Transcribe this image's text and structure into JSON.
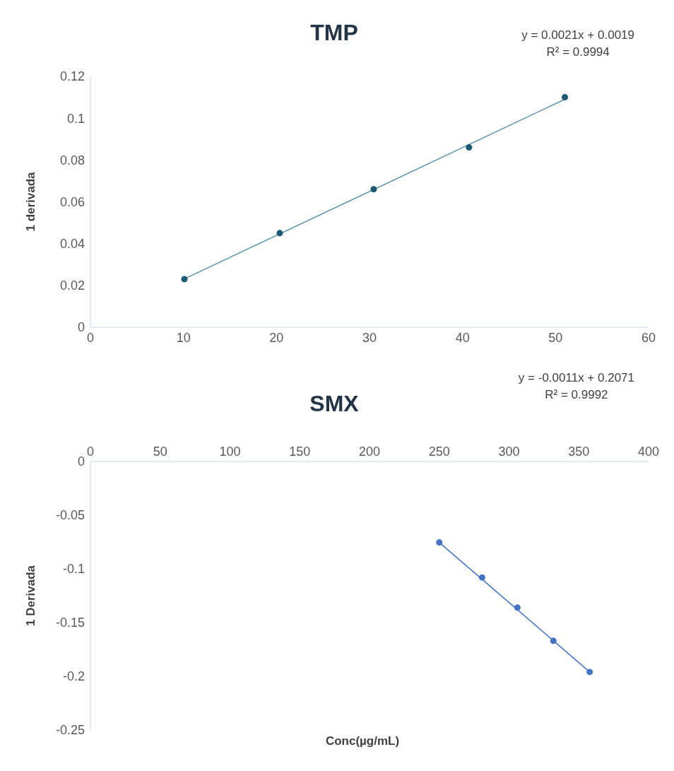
{
  "chart_data": [
    {
      "type": "scatter",
      "title": "TMP",
      "ylabel": "1 derivada",
      "annotations": [
        "y = 0.0021x + 0.0019",
        "R² = 0.9994"
      ],
      "xlim": [
        0,
        60
      ],
      "xticks": [
        0,
        10,
        20,
        30,
        40,
        50,
        60
      ],
      "ylim": [
        0,
        0.12
      ],
      "yticks": [
        0,
        0.02,
        0.04,
        0.06,
        0.08,
        0.1,
        0.12
      ],
      "marker": "circle",
      "series": [
        {
          "type": "line",
          "marker": "none",
          "color": "#5b93ab",
          "x": [
            10.1,
            51
          ],
          "values": [
            0.0231,
            0.109
          ]
        },
        {
          "color": "#1c5a74",
          "x": [
            10.1,
            20.35,
            30.45,
            40.7,
            51
          ],
          "values": [
            0.023,
            0.045,
            0.066,
            0.086,
            0.11
          ]
        }
      ]
    },
    {
      "type": "scatter",
      "title": "SMX",
      "xlabel": "Conc(µg/mL)",
      "ylabel": "1 Derivada",
      "annotations": [
        "y = -0.0011x + 0.2071",
        "R² = 0.9992"
      ],
      "xlim": [
        0,
        400
      ],
      "xticks": [
        0,
        50,
        100,
        150,
        200,
        250,
        300,
        350,
        400
      ],
      "ylim": [
        -0.25,
        0
      ],
      "yticks": [
        -0.25,
        -0.2,
        -0.15,
        -0.1,
        -0.05,
        0
      ],
      "marker": "circle",
      "series": [
        {
          "type": "line",
          "marker": "none",
          "color": "#4472c4",
          "x": [
            250,
            357.8
          ],
          "values": [
            -0.0754,
            -0.196
          ]
        },
        {
          "color": "#4472c4",
          "x": [
            250,
            280.7,
            306,
            331.8,
            357.8
          ],
          "values": [
            -0.0754,
            -0.108,
            -0.136,
            -0.167,
            -0.196
          ]
        }
      ]
    }
  ]
}
